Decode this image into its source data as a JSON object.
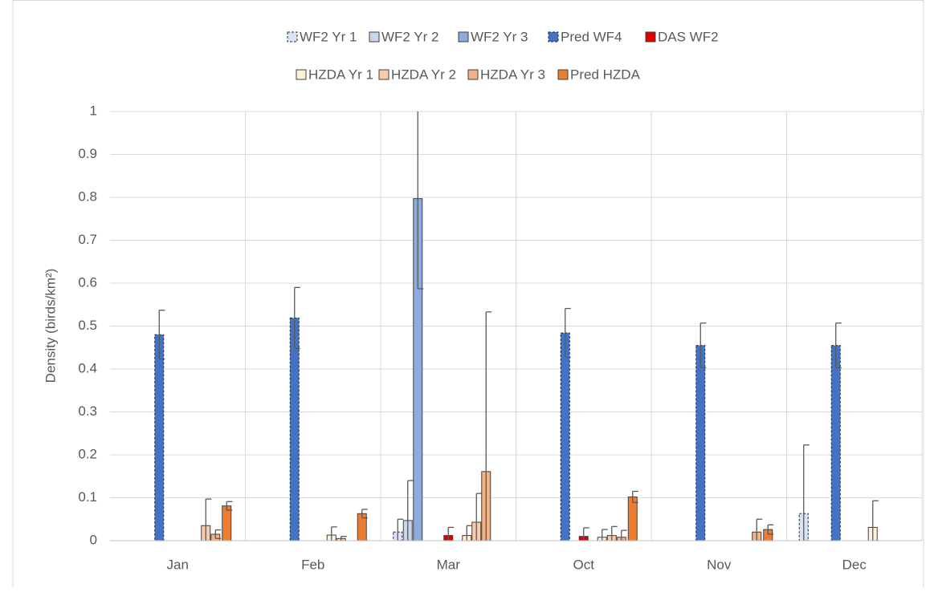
{
  "chart_data": {
    "type": "bar",
    "y_label": "Density (birds/km²)",
    "categories": [
      "Jan",
      "Feb",
      "Mar",
      "Oct",
      "Nov",
      "Dec"
    ],
    "ylim": [
      0,
      1
    ],
    "yticks": [
      0,
      0.1,
      0.2,
      0.3,
      0.4,
      0.5,
      0.6,
      0.7,
      0.8,
      0.9,
      1
    ],
    "grid": true,
    "legend": "top",
    "series": [
      {
        "name": "WF2 Yr 1",
        "color": "#dae3f3",
        "dashed": true,
        "values": [
          0,
          0,
          0.02,
          0,
          0,
          0.063
        ],
        "errors": [
          0,
          0,
          0.03,
          0,
          0,
          0.16
        ]
      },
      {
        "name": "WF2 Yr 2",
        "color": "#c9d6ec",
        "values": [
          0,
          0,
          0.047,
          0,
          0,
          0
        ],
        "errors": [
          0,
          0,
          0.093,
          0,
          0,
          0
        ]
      },
      {
        "name": "WF2 Yr 3",
        "color": "#8faadc",
        "values": [
          0,
          0,
          0.797,
          0,
          0,
          0
        ],
        "errors": [
          0,
          0,
          0.21,
          0,
          0,
          0
        ]
      },
      {
        "name": "Pred WF4",
        "color": "#4472c4",
        "dashed": true,
        "values": [
          0.48,
          0.519,
          0,
          0.484,
          0.455,
          0.455
        ],
        "errors": [
          0.057,
          0.071,
          0,
          0.057,
          0.052,
          0.052
        ]
      },
      {
        "name": "DAS WF2",
        "color": "#e00000",
        "values": [
          0,
          0,
          0.012,
          0.01,
          0,
          0
        ],
        "errors": [
          0,
          0,
          0.019,
          0.02,
          0,
          0
        ]
      },
      {
        "name": "HZDA Yr 1",
        "color": "#fdf2d9",
        "values": [
          0,
          0.013,
          0.012,
          0.008,
          0,
          0.031
        ],
        "errors": [
          0,
          0.019,
          0.023,
          0.018,
          0,
          0.062
        ]
      },
      {
        "name": "HZDA Yr 2",
        "color": "#f8cbad",
        "values": [
          0.035,
          0.005,
          0.043,
          0.012,
          0,
          0
        ],
        "errors": [
          0.062,
          0.005,
          0.067,
          0.021,
          0,
          0
        ]
      },
      {
        "name": "HZDA Yr 3",
        "color": "#f4b183",
        "values": [
          0.015,
          0,
          0.161,
          0.008,
          0.02,
          0
        ],
        "errors": [
          0.01,
          0,
          0.372,
          0.016,
          0.03,
          0
        ]
      },
      {
        "name": "Pred HZDA",
        "color": "#ed7d31",
        "values": [
          0.081,
          0.063,
          0,
          0.102,
          0.026,
          0
        ],
        "errors": [
          0.01,
          0.01,
          0,
          0.013,
          0.011,
          0
        ]
      }
    ]
  }
}
